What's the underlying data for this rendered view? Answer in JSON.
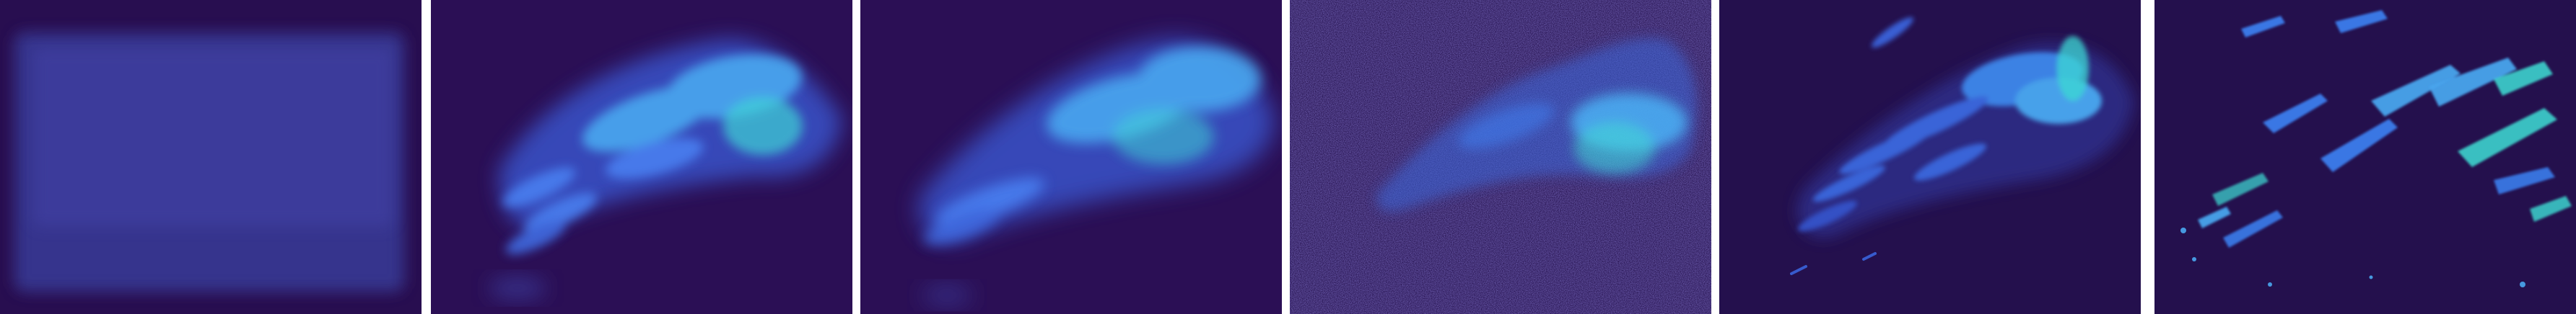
{
  "figure": {
    "panels": [
      {
        "id": "panel-1",
        "description_kind": "blurred-rectangle"
      },
      {
        "id": "panel-2",
        "description_kind": "blurred-pattern"
      },
      {
        "id": "panel-3",
        "description_kind": "blurred-pattern"
      },
      {
        "id": "panel-4",
        "description_kind": "noisy-pattern"
      },
      {
        "id": "panel-5",
        "description_kind": "sharp-pattern"
      },
      {
        "id": "panel-6",
        "description_kind": "sharp-pattern"
      }
    ],
    "colors": {
      "background": "#2b0f55",
      "mid": "#3b3a9a",
      "bright": "#4aa8f0",
      "cyan": "#3fe3d8",
      "separator": "#ffffff"
    }
  }
}
